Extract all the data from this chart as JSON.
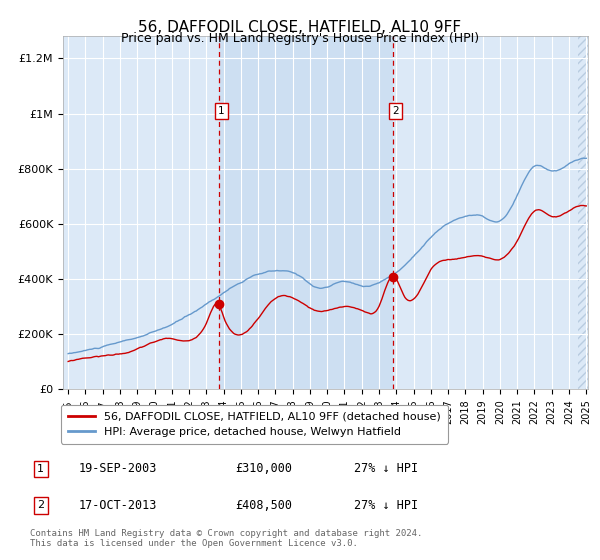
{
  "title": "56, DAFFODIL CLOSE, HATFIELD, AL10 9FF",
  "subtitle": "Price paid vs. HM Land Registry's House Price Index (HPI)",
  "background_color": "#ffffff",
  "plot_bg_color": "#dce9f7",
  "shade_between_color": "#c8dcf0",
  "hatch_color": "#b8cce0",
  "yticks": [
    0,
    200000,
    400000,
    600000,
    800000,
    1000000,
    1200000
  ],
  "ytick_labels": [
    "£0",
    "£200K",
    "£400K",
    "£600K",
    "£800K",
    "£1M",
    "£1.2M"
  ],
  "sale1_year_dec": 2003.72,
  "sale1_price": 310000,
  "sale2_year_dec": 2013.79,
  "sale2_price": 408500,
  "sale1_date": "19-SEP-2003",
  "sale1_hpi": "27% ↓ HPI",
  "sale2_date": "17-OCT-2013",
  "sale2_hpi": "27% ↓ HPI",
  "red_line_color": "#cc0000",
  "blue_line_color": "#6699cc",
  "dashed_line_color": "#cc0000",
  "legend_label_red": "56, DAFFODIL CLOSE, HATFIELD, AL10 9FF (detached house)",
  "legend_label_blue": "HPI: Average price, detached house, Welwyn Hatfield",
  "footer_text": "Contains HM Land Registry data © Crown copyright and database right 2024.\nThis data is licensed under the Open Government Licence v3.0."
}
